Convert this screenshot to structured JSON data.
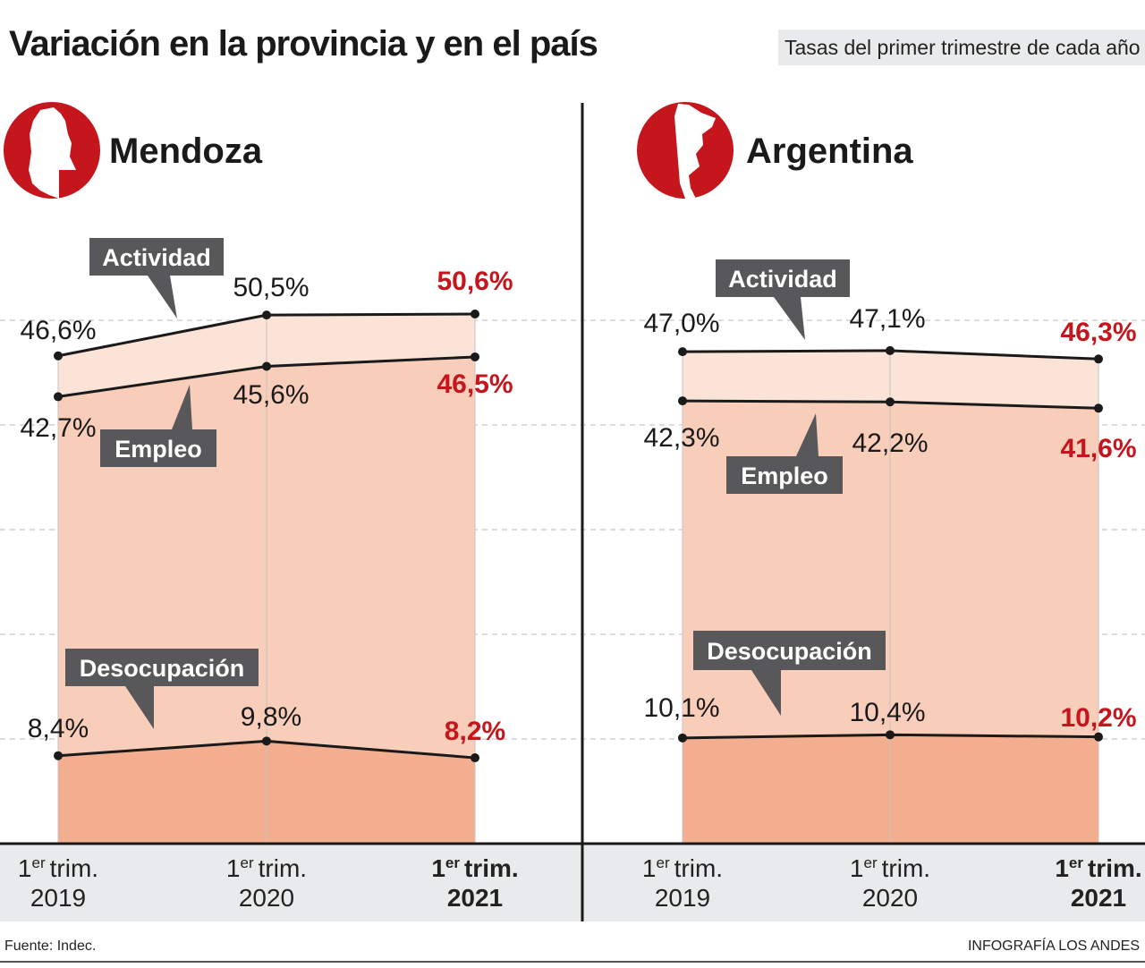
{
  "title": "Variación en la provincia y en el país",
  "subtitle": "Tasas del primer trimestre de cada año",
  "footer": {
    "source": "Fuente: Indec.",
    "credit": "INFOGRAFÍA LOS ANDES"
  },
  "colors": {
    "highlight": "#c4161c",
    "actividad_band": "#fbe3d8",
    "empleo_area": "#f8cdb9",
    "desocupacion_area": "#f3ae90",
    "callout": "#58585a",
    "axis_band": "#e9eaeb"
  },
  "chart_data": [
    {
      "type": "area",
      "panel": "Mendoza",
      "icon": "mendoza-map-icon",
      "categories": [
        {
          "line1": "trim.",
          "sup": "er",
          "pre": "1",
          "line2": "2019"
        },
        {
          "line1": "trim.",
          "sup": "er",
          "pre": "1",
          "line2": "2020"
        },
        {
          "line1": "trim.",
          "sup": "er",
          "pre": "1",
          "line2": "2021"
        }
      ],
      "series": [
        {
          "name": "Actividad",
          "values": [
            46.6,
            50.5,
            50.6
          ],
          "labels": [
            "46,6%",
            "50,5%",
            "50,6%"
          ]
        },
        {
          "name": "Empleo",
          "values": [
            42.7,
            45.6,
            46.5
          ],
          "labels": [
            "42,7%",
            "45,6%",
            "46,5%"
          ]
        },
        {
          "name": "Desocupación",
          "values": [
            8.4,
            9.8,
            8.2
          ],
          "labels": [
            "8,4%",
            "9,8%",
            "8,2%"
          ]
        }
      ],
      "ylim": [
        0,
        55
      ],
      "grid": true
    },
    {
      "type": "area",
      "panel": "Argentina",
      "icon": "argentina-map-icon",
      "categories": [
        {
          "line1": "trim.",
          "sup": "er",
          "pre": "1",
          "line2": "2019"
        },
        {
          "line1": "trim.",
          "sup": "er",
          "pre": "1",
          "line2": "2020"
        },
        {
          "line1": "trim.",
          "sup": "er",
          "pre": "1",
          "line2": "2021"
        }
      ],
      "series": [
        {
          "name": "Actividad",
          "values": [
            47.0,
            47.1,
            46.3
          ],
          "labels": [
            "47,0%",
            "47,1%",
            "46,3%"
          ]
        },
        {
          "name": "Empleo",
          "values": [
            42.3,
            42.2,
            41.6
          ],
          "labels": [
            "42,3%",
            "42,2%",
            "41,6%"
          ]
        },
        {
          "name": "Desocupación",
          "values": [
            10.1,
            10.4,
            10.2
          ],
          "labels": [
            "10,1%",
            "10,4%",
            "10,2%"
          ]
        }
      ],
      "ylim": [
        0,
        55
      ],
      "grid": true
    }
  ]
}
